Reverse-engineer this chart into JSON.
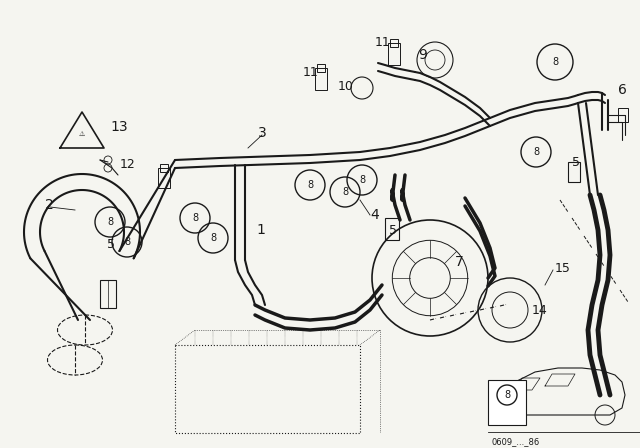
{
  "bg_color": "#f5f5f0",
  "line_color": "#1a1a1a",
  "label_color": "#1a1a1a",
  "fig_width": 6.4,
  "fig_height": 4.48,
  "dpi": 100,
  "footer_text": "0609_..._86"
}
